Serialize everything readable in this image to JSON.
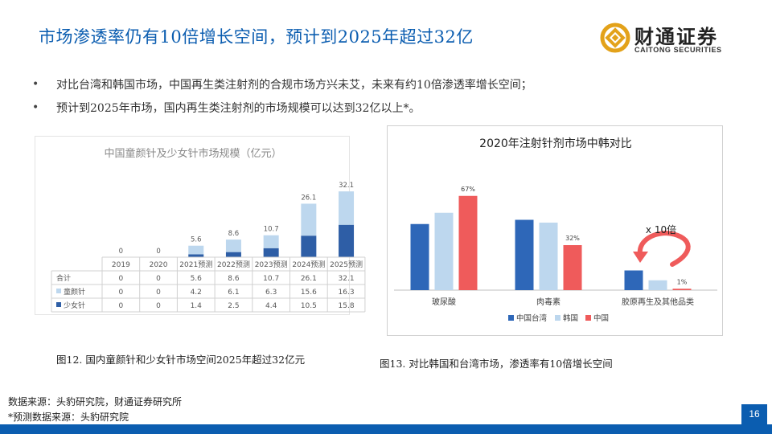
{
  "title": "市场渗透率仍有10倍增长空间，预计到2025年超过32亿",
  "logo": {
    "cn": "财通证券",
    "en": "CAITONG SECURITIES"
  },
  "bullets": [
    "对比台湾和韩国市场，中国再生类注射剂的合规市场方兴未艾，未来有约10倍渗透率增长空间；",
    "预计到2025年市场，国内再生类注射剂的市场规模可以达到32亿以上*。"
  ],
  "chart_data": [
    {
      "type": "bar",
      "stacked": true,
      "title": "中国童颜针及少女针市场规模（亿元）",
      "categories": [
        "2019",
        "2020",
        "2021预测",
        "2022预测",
        "2023预测",
        "2024预测",
        "2025预测"
      ],
      "totals": [
        0,
        0,
        5.6,
        8.6,
        10.7,
        26.1,
        32.1
      ],
      "series": [
        {
          "name": "童颜针",
          "values": [
            0,
            0,
            4.2,
            6.1,
            6.3,
            15.6,
            16.3
          ],
          "color": "#bdd7ee"
        },
        {
          "name": "少女针",
          "values": [
            0,
            0,
            1.4,
            2.5,
            4.4,
            10.5,
            15.8
          ],
          "color": "#2e5ea6"
        }
      ],
      "table_rows": [
        {
          "label": "合计",
          "values": [
            "0",
            "0",
            "5.6",
            "8.6",
            "10.7",
            "26.1",
            "32.1"
          ]
        },
        {
          "label": "童颜针",
          "values": [
            "0",
            "0",
            "4.2",
            "6.1",
            "6.3",
            "15.6",
            "16.3"
          ]
        },
        {
          "label": "少女针",
          "values": [
            "0",
            "0",
            "1.4",
            "2.5",
            "4.4",
            "10.5",
            "15.8"
          ]
        }
      ],
      "ylim": [
        0,
        40
      ],
      "grid": false,
      "legend": "table"
    },
    {
      "type": "bar",
      "title": "2020年注射针剂市场中韩对比",
      "categories": [
        "玻尿酸",
        "肉毒素",
        "胶原再生及其他品类"
      ],
      "series": [
        {
          "name": "中国台湾",
          "values": [
            47,
            50,
            14
          ],
          "color": "#2e67b8"
        },
        {
          "name": "韩国",
          "values": [
            55,
            48,
            7
          ],
          "color": "#bdd7ee"
        },
        {
          "name": "中国",
          "values": [
            67,
            32,
            1
          ],
          "color": "#ef5b5b",
          "labels": [
            "67%",
            "32%",
            "1%"
          ]
        }
      ],
      "ylim": [
        0,
        80
      ],
      "grid": false,
      "legend": "bottom",
      "annotation": "x 10倍"
    }
  ],
  "captions": {
    "fig12": "图12. 国内童颜针和少女针市场空间2025年超过32亿元",
    "fig13": "图13. 对比韩国和台湾市场，渗透率有10倍增长空间"
  },
  "sources": [
    "数据来源：头豹研究院，财通证券研究所",
    "*预测数据来源：头豹研究院"
  ],
  "page_number": "16",
  "colors": {
    "accent": "#0b5db0",
    "logo_gold": "#e3a21a"
  }
}
